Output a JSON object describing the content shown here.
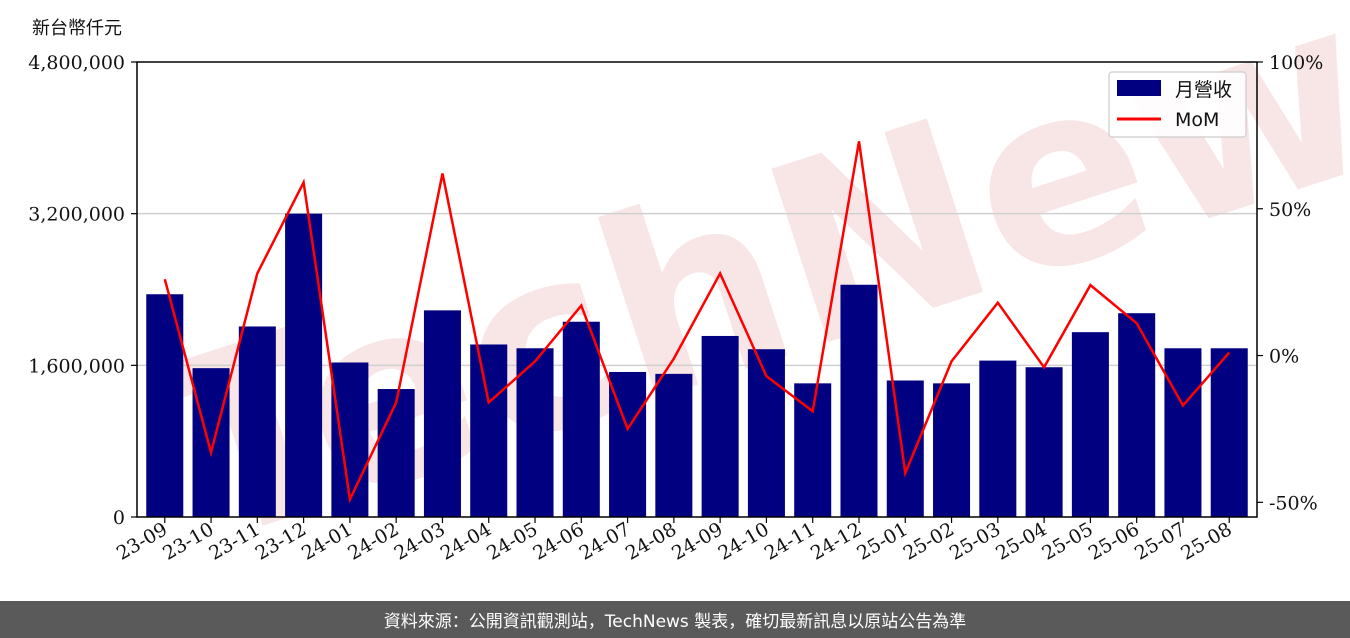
{
  "unit_label": "新台幣仟元",
  "footer_text": "資料來源：公開資訊觀測站，TechNews 製表，確切最新訊息以原站公告為準",
  "watermark": "TechNews",
  "chart_data": {
    "type": "bar",
    "categories": [
      "23-09",
      "23-10",
      "23-11",
      "23-12",
      "24-01",
      "24-02",
      "24-03",
      "24-04",
      "24-05",
      "24-06",
      "24-07",
      "24-08",
      "24-09",
      "24-10",
      "24-11",
      "24-12",
      "25-01",
      "25-02",
      "25-03",
      "25-04",
      "25-05",
      "25-06",
      "25-07",
      "25-08"
    ],
    "series": [
      {
        "name": "月營收",
        "axis": "left",
        "type": "bar",
        "color": "#000080",
        "values": [
          2350000,
          1570000,
          2010000,
          3200000,
          1630000,
          1350000,
          2180000,
          1820000,
          1780000,
          2060000,
          1530000,
          1510000,
          1910000,
          1770000,
          1410000,
          2450000,
          1440000,
          1410000,
          1650000,
          1580000,
          1950000,
          2150000,
          1780000,
          1780000
        ]
      },
      {
        "name": "MoM",
        "axis": "right",
        "type": "line",
        "color": "#ff0000",
        "values": [
          26,
          -33,
          28,
          59,
          -49,
          -16,
          62,
          -16,
          -2,
          17,
          -25,
          -1,
          28,
          -7,
          -19,
          73,
          -40,
          -2,
          18,
          -4,
          24,
          11,
          -17,
          1
        ]
      }
    ],
    "y_left": {
      "ylim": [
        0,
        4800000
      ],
      "ticks": [
        0,
        1600000,
        3200000,
        4800000
      ],
      "tick_labels": [
        "0",
        "1,600,000",
        "3,200,000",
        "4,800,000"
      ]
    },
    "y_right": {
      "ylim": [
        -55,
        100
      ],
      "ticks": [
        -50,
        0,
        50,
        100
      ],
      "tick_labels": [
        "-50%",
        "0%",
        "50%",
        "100%"
      ]
    },
    "grid": "horizontal",
    "legend": "top-right"
  }
}
